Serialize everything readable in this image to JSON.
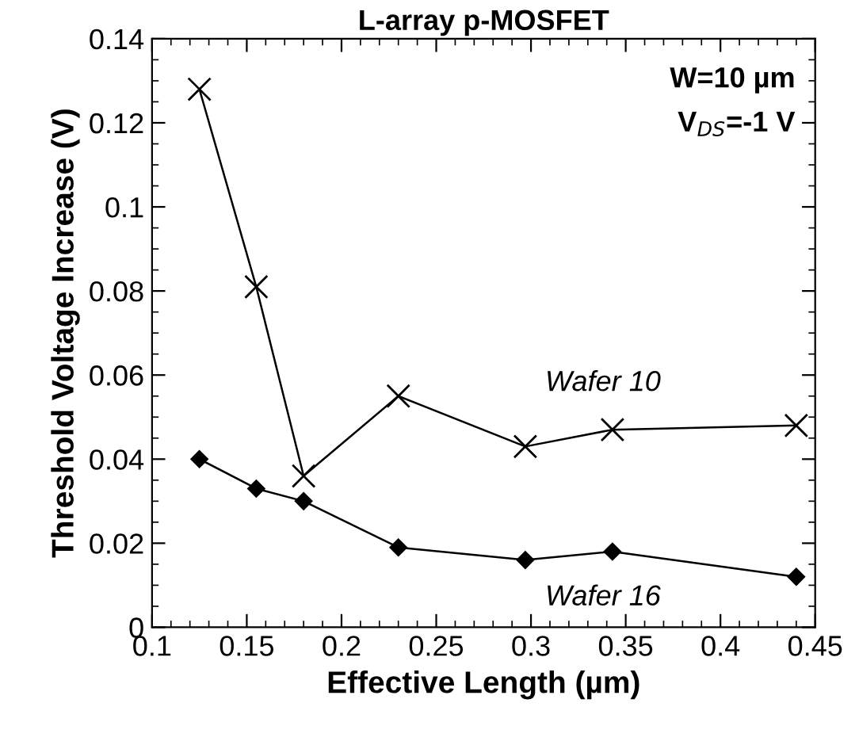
{
  "chart_data": {
    "type": "line",
    "title": "L-array p-MOSFET",
    "xlabel": "Effective Length (µm)",
    "ylabel": "Threshold Voltage Increase (V)",
    "annotations": [
      "W=10 µm",
      "V$_{DS}$=-1 V"
    ],
    "series": [
      {
        "name": "Wafer 10",
        "color": "#000000",
        "marker": "cross",
        "x": [
          0.125,
          0.155,
          0.18,
          0.23,
          0.297,
          0.343,
          0.44
        ],
        "values": [
          0.128,
          0.081,
          0.036,
          0.055,
          0.043,
          0.047,
          0.048
        ]
      },
      {
        "name": "Wafer 16",
        "color": "#000000",
        "marker": "diamond",
        "x": [
          0.125,
          0.155,
          0.18,
          0.23,
          0.297,
          0.343,
          0.44
        ],
        "values": [
          0.04,
          0.033,
          0.03,
          0.019,
          0.016,
          0.018,
          0.012
        ]
      }
    ],
    "xlim": [
      0.1,
      0.45
    ],
    "xticks": [
      0.1,
      0.15,
      0.2,
      0.25,
      0.3,
      0.35,
      0.4,
      0.45
    ],
    "ylim": [
      0,
      0.14
    ],
    "yticks": [
      0,
      0.02,
      0.04,
      0.06,
      0.08,
      0.1,
      0.12,
      0.14
    ],
    "grid": false,
    "legend": false,
    "line_style": "solid"
  }
}
